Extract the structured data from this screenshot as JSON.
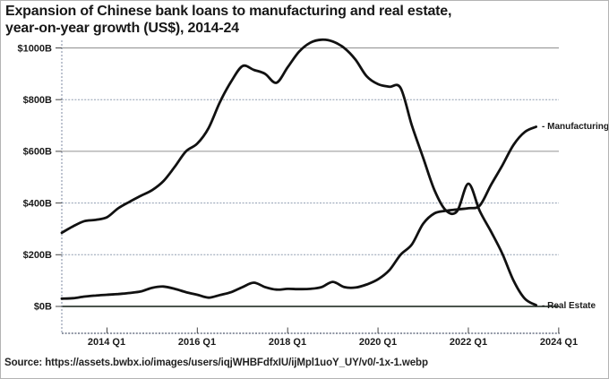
{
  "title_line1": "Expansion of Chinese bank loans to manufacturing and real estate,",
  "title_line2": "year-on-year growth (US$), 2014-24",
  "source": "Source: https://assets.bwbx.io/images/users/iqjWHBFdfxIU/ijMpl1uoY_UY/v0/-1x-1.webp",
  "chart_data": {
    "type": "line",
    "title": "Expansion of Chinese bank loans to manufacturing and real estate, year-on-year growth (US$), 2014-24",
    "xlabel": "",
    "ylabel": "",
    "ylim": [
      0,
      1050
    ],
    "grid": true,
    "legend_position": "labels at right end of each line",
    "line_color": "#111111",
    "grid_color": "#909090",
    "y_ticks": [
      0,
      200,
      400,
      600,
      800,
      1000
    ],
    "y_tick_labels": [
      "$0B",
      "$200B",
      "$400B",
      "$600B",
      "$800B",
      "$1000B"
    ],
    "x_tick_labels": [
      "2014 Q1",
      "2016 Q1",
      "2018 Q1",
      "2020 Q1",
      "2022 Q1",
      "2024 Q1"
    ],
    "x": [
      "2013 Q1",
      "2013 Q2",
      "2013 Q3",
      "2013 Q4",
      "2014 Q1",
      "2014 Q2",
      "2014 Q3",
      "2014 Q4",
      "2015 Q1",
      "2015 Q2",
      "2015 Q3",
      "2015 Q4",
      "2016 Q1",
      "2016 Q2",
      "2016 Q3",
      "2016 Q4",
      "2017 Q1",
      "2017 Q2",
      "2017 Q3",
      "2017 Q4",
      "2018 Q1",
      "2018 Q2",
      "2018 Q3",
      "2018 Q4",
      "2019 Q1",
      "2019 Q2",
      "2019 Q3",
      "2019 Q4",
      "2020 Q1",
      "2020 Q2",
      "2020 Q3",
      "2020 Q4",
      "2021 Q1",
      "2021 Q2",
      "2021 Q3",
      "2021 Q4",
      "2022 Q1",
      "2022 Q2",
      "2022 Q3",
      "2022 Q4",
      "2023 Q1",
      "2023 Q2",
      "2023 Q3"
    ],
    "series": [
      {
        "name": "Real Estate",
        "end_label": "- Real Estate",
        "color": "#111111",
        "values": [
          285,
          310,
          330,
          335,
          345,
          380,
          405,
          428,
          450,
          485,
          540,
          600,
          630,
          690,
          790,
          870,
          930,
          915,
          900,
          865,
          925,
          985,
          1020,
          1032,
          1025,
          1000,
          955,
          890,
          860,
          850,
          845,
          700,
          575,
          450,
          372,
          368,
          475,
          370,
          290,
          205,
          100,
          30,
          5
        ]
      },
      {
        "name": "Manufacturing",
        "end_label": "- Manufacturing",
        "color": "#111111",
        "values": [
          30,
          32,
          38,
          42,
          45,
          48,
          52,
          58,
          72,
          77,
          68,
          55,
          45,
          34,
          44,
          55,
          75,
          92,
          75,
          65,
          68,
          67,
          68,
          75,
          95,
          75,
          73,
          85,
          105,
          140,
          200,
          240,
          320,
          360,
          370,
          375,
          380,
          390,
          470,
          545,
          625,
          675,
          695
        ]
      }
    ]
  }
}
